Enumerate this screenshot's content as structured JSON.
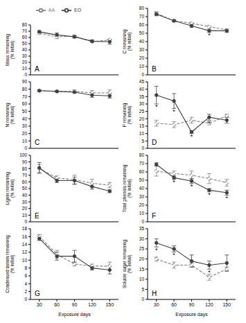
{
  "chart_data": [
    {
      "type": "line",
      "title": "A",
      "y_label": "Mass remaining (% initial)",
      "x": [
        30,
        60,
        90,
        120,
        150
      ],
      "xlim": [
        15,
        165
      ],
      "xticks": [
        30,
        60,
        90,
        120,
        150
      ],
      "ylim": [
        0,
        80
      ],
      "yticks": [
        0,
        10,
        20,
        30,
        40,
        50,
        60,
        70,
        80
      ],
      "tick_labels": "y",
      "legend": "top",
      "series": [
        {
          "name": "AA",
          "color": "#7f7f7f",
          "marker": "open_circle",
          "line_style": "dashed",
          "values": [
            67,
            61,
            62,
            53,
            56
          ],
          "errors": [
            2,
            3,
            2,
            1,
            1
          ]
        },
        {
          "name": "EO",
          "color": "#404040",
          "marker": "circle",
          "line_style": "solid",
          "values": [
            69,
            64,
            61,
            54,
            53
          ],
          "errors": [
            2,
            3,
            2,
            2,
            4
          ]
        }
      ],
      "annotations": []
    },
    {
      "type": "line",
      "title": "B",
      "y_label": "C remaining (% initial)",
      "x": [
        30,
        60,
        90,
        120,
        150
      ],
      "xlim": [
        15,
        165
      ],
      "xticks": [
        30,
        60,
        90,
        120,
        150
      ],
      "ylim": [
        0,
        80
      ],
      "yticks": [
        0,
        10,
        20,
        30,
        40,
        50,
        60,
        70,
        80
      ],
      "tick_labels": "y",
      "series": [
        {
          "name": "AA",
          "color": "#7f7f7f",
          "marker": "open_circle",
          "line_style": "dashed",
          "values": [
            74,
            65,
            62,
            58,
            54
          ],
          "errors": [
            2,
            1,
            1,
            1,
            1
          ]
        },
        {
          "name": "EO",
          "color": "#404040",
          "marker": "circle",
          "line_style": "solid",
          "values": [
            73,
            65,
            59,
            53,
            53
          ],
          "errors": [
            2,
            1,
            2,
            2,
            2
          ]
        }
      ],
      "annotations": [
        {
          "x": 120,
          "text": "*"
        }
      ]
    },
    {
      "type": "line",
      "title": "C",
      "y_label": "N remaining (% initial)",
      "x": [
        30,
        60,
        90,
        120,
        150
      ],
      "xlim": [
        15,
        165
      ],
      "xticks": [
        30,
        60,
        90,
        120,
        150
      ],
      "ylim": [
        0,
        90
      ],
      "yticks": [
        0,
        10,
        20,
        30,
        40,
        50,
        60,
        70,
        80,
        90
      ],
      "tick_labels": "y",
      "series": [
        {
          "name": "AA",
          "color": "#7f7f7f",
          "marker": "open_circle",
          "line_style": "dashed",
          "values": [
            78,
            77,
            77,
            75,
            75
          ],
          "errors": [
            1,
            1,
            2,
            3,
            4
          ]
        },
        {
          "name": "EO",
          "color": "#404040",
          "marker": "circle",
          "line_style": "solid",
          "values": [
            78,
            77,
            76,
            72,
            71
          ],
          "errors": [
            1,
            1,
            1,
            3,
            3
          ]
        }
      ],
      "annotations": []
    },
    {
      "type": "line",
      "title": "D",
      "y_label": "P remaining (% initial)",
      "x": [
        30,
        60,
        90,
        120,
        150
      ],
      "xlim": [
        15,
        165
      ],
      "xticks": [
        30,
        60,
        90,
        120,
        150
      ],
      "ylim": [
        0,
        45
      ],
      "yticks": [
        0,
        5,
        10,
        15,
        20,
        25,
        30,
        35,
        40,
        45
      ],
      "tick_labels": "y",
      "series": [
        {
          "name": "AA",
          "color": "#7f7f7f",
          "marker": "open_circle",
          "line_style": "dashed",
          "values": [
            17,
            16,
            19,
            17,
            22
          ],
          "errors": [
            2,
            2,
            2,
            1,
            1
          ]
        },
        {
          "name": "EO",
          "color": "#404040",
          "marker": "circle",
          "line_style": "solid",
          "values": [
            36,
            32,
            11,
            21,
            19
          ],
          "errors": [
            6,
            5,
            1,
            2,
            2
          ]
        }
      ],
      "annotations": [
        {
          "x": 30,
          "text": "*"
        },
        {
          "x": 60,
          "text": "*"
        },
        {
          "x": 90,
          "text": "*"
        },
        {
          "x": 120,
          "text": "*"
        }
      ]
    },
    {
      "type": "line",
      "title": "E",
      "y_label": "Lignin remaining (% initial)",
      "x": [
        30,
        60,
        90,
        120,
        150
      ],
      "xlim": [
        15,
        165
      ],
      "xticks": [
        30,
        60,
        90,
        120,
        150
      ],
      "ylim": [
        0,
        100
      ],
      "yticks": [
        0,
        10,
        20,
        30,
        40,
        50,
        60,
        70,
        80,
        90,
        100
      ],
      "tick_labels": "y",
      "series": [
        {
          "name": "AA",
          "color": "#7f7f7f",
          "marker": "open_circle",
          "line_style": "dashed",
          "values": [
            80,
            66,
            63,
            58,
            55
          ],
          "errors": [
            6,
            3,
            7,
            6,
            4
          ]
        },
        {
          "name": "EO",
          "color": "#404040",
          "marker": "circle",
          "line_style": "solid",
          "values": [
            81,
            62,
            62,
            53,
            46
          ],
          "errors": [
            8,
            3,
            5,
            4,
            2
          ]
        }
      ],
      "annotations": []
    },
    {
      "type": "line",
      "title": "F",
      "y_label": "Total phenols remaining (% initial)",
      "x": [
        30,
        60,
        90,
        120,
        150
      ],
      "xlim": [
        15,
        165
      ],
      "xticks": [
        30,
        60,
        90,
        120,
        150
      ],
      "ylim": [
        0,
        80
      ],
      "yticks": [
        0,
        10,
        20,
        30,
        40,
        50,
        60,
        70,
        80
      ],
      "tick_labels": "y",
      "series": [
        {
          "name": "AA",
          "color": "#7f7f7f",
          "marker": "open_circle",
          "line_style": "dashed",
          "values": [
            61,
            58,
            56,
            52,
            47
          ],
          "errors": [
            6,
            3,
            5,
            6,
            4
          ]
        },
        {
          "name": "EO",
          "color": "#404040",
          "marker": "circle",
          "line_style": "solid",
          "values": [
            69,
            53,
            49,
            38,
            35
          ],
          "errors": [
            2,
            2,
            3,
            2,
            3
          ]
        }
      ],
      "annotations": [
        {
          "x": 60,
          "text": "*"
        },
        {
          "x": 90,
          "text": "*"
        },
        {
          "x": 120,
          "text": "*"
        },
        {
          "x": 150,
          "text": "*"
        }
      ]
    },
    {
      "type": "line",
      "title": "G",
      "y_label": "Condensed tannin remaining (% initial)",
      "x_label": "Exposure days",
      "x": [
        30,
        60,
        90,
        120,
        150
      ],
      "xlim": [
        15,
        165
      ],
      "xticks": [
        30,
        60,
        90,
        120,
        150
      ],
      "ylim": [
        0,
        18
      ],
      "yticks": [
        0,
        2,
        4,
        6,
        8,
        10,
        12,
        14,
        16,
        18
      ],
      "series": [
        {
          "name": "AA",
          "color": "#7f7f7f",
          "marker": "open_circle",
          "line_style": "dashed",
          "values": [
            16,
            11.5,
            9,
            8.5,
            8.5
          ],
          "errors": [
            0.5,
            1,
            0.5,
            0.5,
            1
          ]
        },
        {
          "name": "EO",
          "color": "#404040",
          "marker": "circle",
          "line_style": "solid",
          "values": [
            15.5,
            11,
            11,
            8,
            7.5
          ],
          "errors": [
            0.5,
            1,
            1.5,
            0.5,
            1
          ]
        }
      ],
      "annotations": []
    },
    {
      "type": "line",
      "title": "H",
      "y_label": "Soluble sugar remaining (% initial)",
      "x_label": "Exposure days",
      "x": [
        30,
        60,
        90,
        120,
        150
      ],
      "xlim": [
        15,
        165
      ],
      "xticks": [
        30,
        60,
        90,
        120,
        150
      ],
      "ylim": [
        0,
        35
      ],
      "yticks": [
        0,
        5,
        10,
        15,
        20,
        25,
        30,
        35
      ],
      "series": [
        {
          "name": "AA",
          "color": "#7f7f7f",
          "marker": "open_circle",
          "line_style": "dashed",
          "values": [
            20,
            17,
            17,
            11,
            15
          ],
          "errors": [
            1,
            1.5,
            1,
            1.5,
            1
          ]
        },
        {
          "name": "EO",
          "color": "#404040",
          "marker": "circle",
          "line_style": "solid",
          "values": [
            28,
            25,
            19,
            17,
            18
          ],
          "errors": [
            2,
            1.5,
            3,
            2,
            4
          ]
        }
      ],
      "annotations": [
        {
          "x": 30,
          "text": "*"
        },
        {
          "x": 60,
          "text": "*"
        },
        {
          "x": 120,
          "text": "*"
        }
      ]
    }
  ]
}
